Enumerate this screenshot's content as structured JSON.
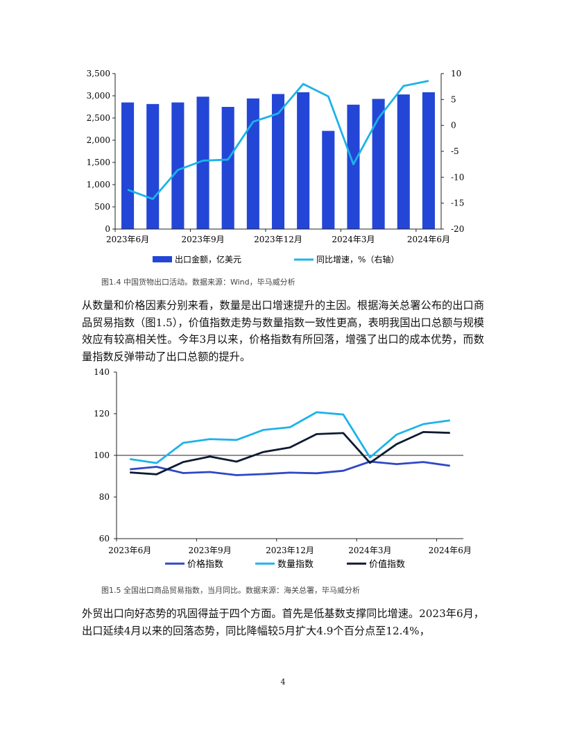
{
  "chart_data": [
    {
      "type": "bar",
      "x": [
        "2023年6月",
        "2023年7月",
        "2023年8月",
        "2023年9月",
        "2023年10月",
        "2023年11月",
        "2023年12月",
        "2024年1-2月",
        "2024年2月",
        "2024年3月",
        "2024年4月",
        "2024年5月",
        "2024年6月"
      ],
      "tick_labels": [
        "2023年6月",
        "2023年9月",
        "2023年12月",
        "2024年3月",
        "2024年6月"
      ],
      "tick_indices": [
        0,
        3,
        6,
        9,
        12
      ],
      "bar_series": {
        "name": "出口金额，亿美元",
        "color": "#2346d6",
        "values": [
          2850,
          2815,
          2850,
          2980,
          2750,
          2940,
          3040,
          3080,
          2210,
          2800,
          2930,
          3030,
          3080
        ]
      },
      "line_series": {
        "name": "同比增速，%（右轴）",
        "color": "#1cb3e8",
        "axis": "right",
        "values": [
          -12.4,
          -14.2,
          -8.6,
          -6.8,
          -6.6,
          0.7,
          2.3,
          8.0,
          5.6,
          -7.5,
          1.4,
          7.6,
          8.6
        ]
      },
      "ylim_left": [
        0,
        3500
      ],
      "yticks_left": [
        "0",
        "500",
        "1,000",
        "1,500",
        "2,000",
        "2,500",
        "3,000",
        "3,500"
      ],
      "ylim_right": [
        -20,
        10
      ],
      "yticks_right": [
        "-20",
        "-15",
        "-10",
        "-5",
        "0",
        "5",
        "10"
      ]
    },
    {
      "type": "line",
      "x": [
        "2023年6月",
        "2023年7月",
        "2023年8月",
        "2023年9月",
        "2023年10月",
        "2023年11月",
        "2023年12月",
        "2024年1月",
        "2024年2月",
        "2024年3月",
        "2024年4月",
        "2024年5月",
        "2024年6月"
      ],
      "tick_labels": [
        "2023年6月",
        "2023年9月",
        "2023年12月",
        "2024年3月",
        "2024年6月"
      ],
      "tick_indices": [
        0,
        3,
        6,
        9,
        12
      ],
      "ylim": [
        60,
        140
      ],
      "yticks": [
        "60",
        "80",
        "100",
        "120",
        "140"
      ],
      "reference_line": 100,
      "series": [
        {
          "name": "价格指数",
          "color": "#2f47c6",
          "values": [
            93.3,
            94.5,
            91.5,
            92.0,
            90.5,
            91.0,
            91.7,
            91.4,
            92.6,
            97.0,
            95.8,
            96.8,
            95.0
          ]
        },
        {
          "name": "数量指数",
          "color": "#1cb3e8",
          "values": [
            98.2,
            96.3,
            106.0,
            107.8,
            107.4,
            112.2,
            113.5,
            120.7,
            119.6,
            99.0,
            110.0,
            115.0,
            116.8
          ]
        },
        {
          "name": "价值指数",
          "color": "#0e1a33",
          "values": [
            91.8,
            90.9,
            96.8,
            99.4,
            97.0,
            101.6,
            103.8,
            110.2,
            110.7,
            96.4,
            105.4,
            111.2,
            110.8
          ]
        }
      ]
    }
  ],
  "captions": {
    "fig14": "图1.4   中国货物出口活动。数据来源：Wind，毕马威分析",
    "fig15": "图1.5   全国出口商品贸易指数，当月同比。数据来源：海关总署，毕马威分析"
  },
  "paragraphs": {
    "p1": "从数量和价格因素分别来看，数量是出口增速提升的主因。根据海关总署公布的出口商品贸易指数（图1.5），价值指数走势与数量指数一致性更高，表明我国出口总额与规模效应有较高相关性。今年3月以来，价格指数有所回落，增强了出口的成本优势，而数量指数反弹带动了出口总额的提升。",
    "p2": "外贸出口向好态势的巩固得益于四个方面。首先是低基数支撑同比增速。2023年6月，出口延续4月以来的回落态势，同比降幅较5月扩大4.9个百分点至12.4%，"
  },
  "page_number": "4"
}
